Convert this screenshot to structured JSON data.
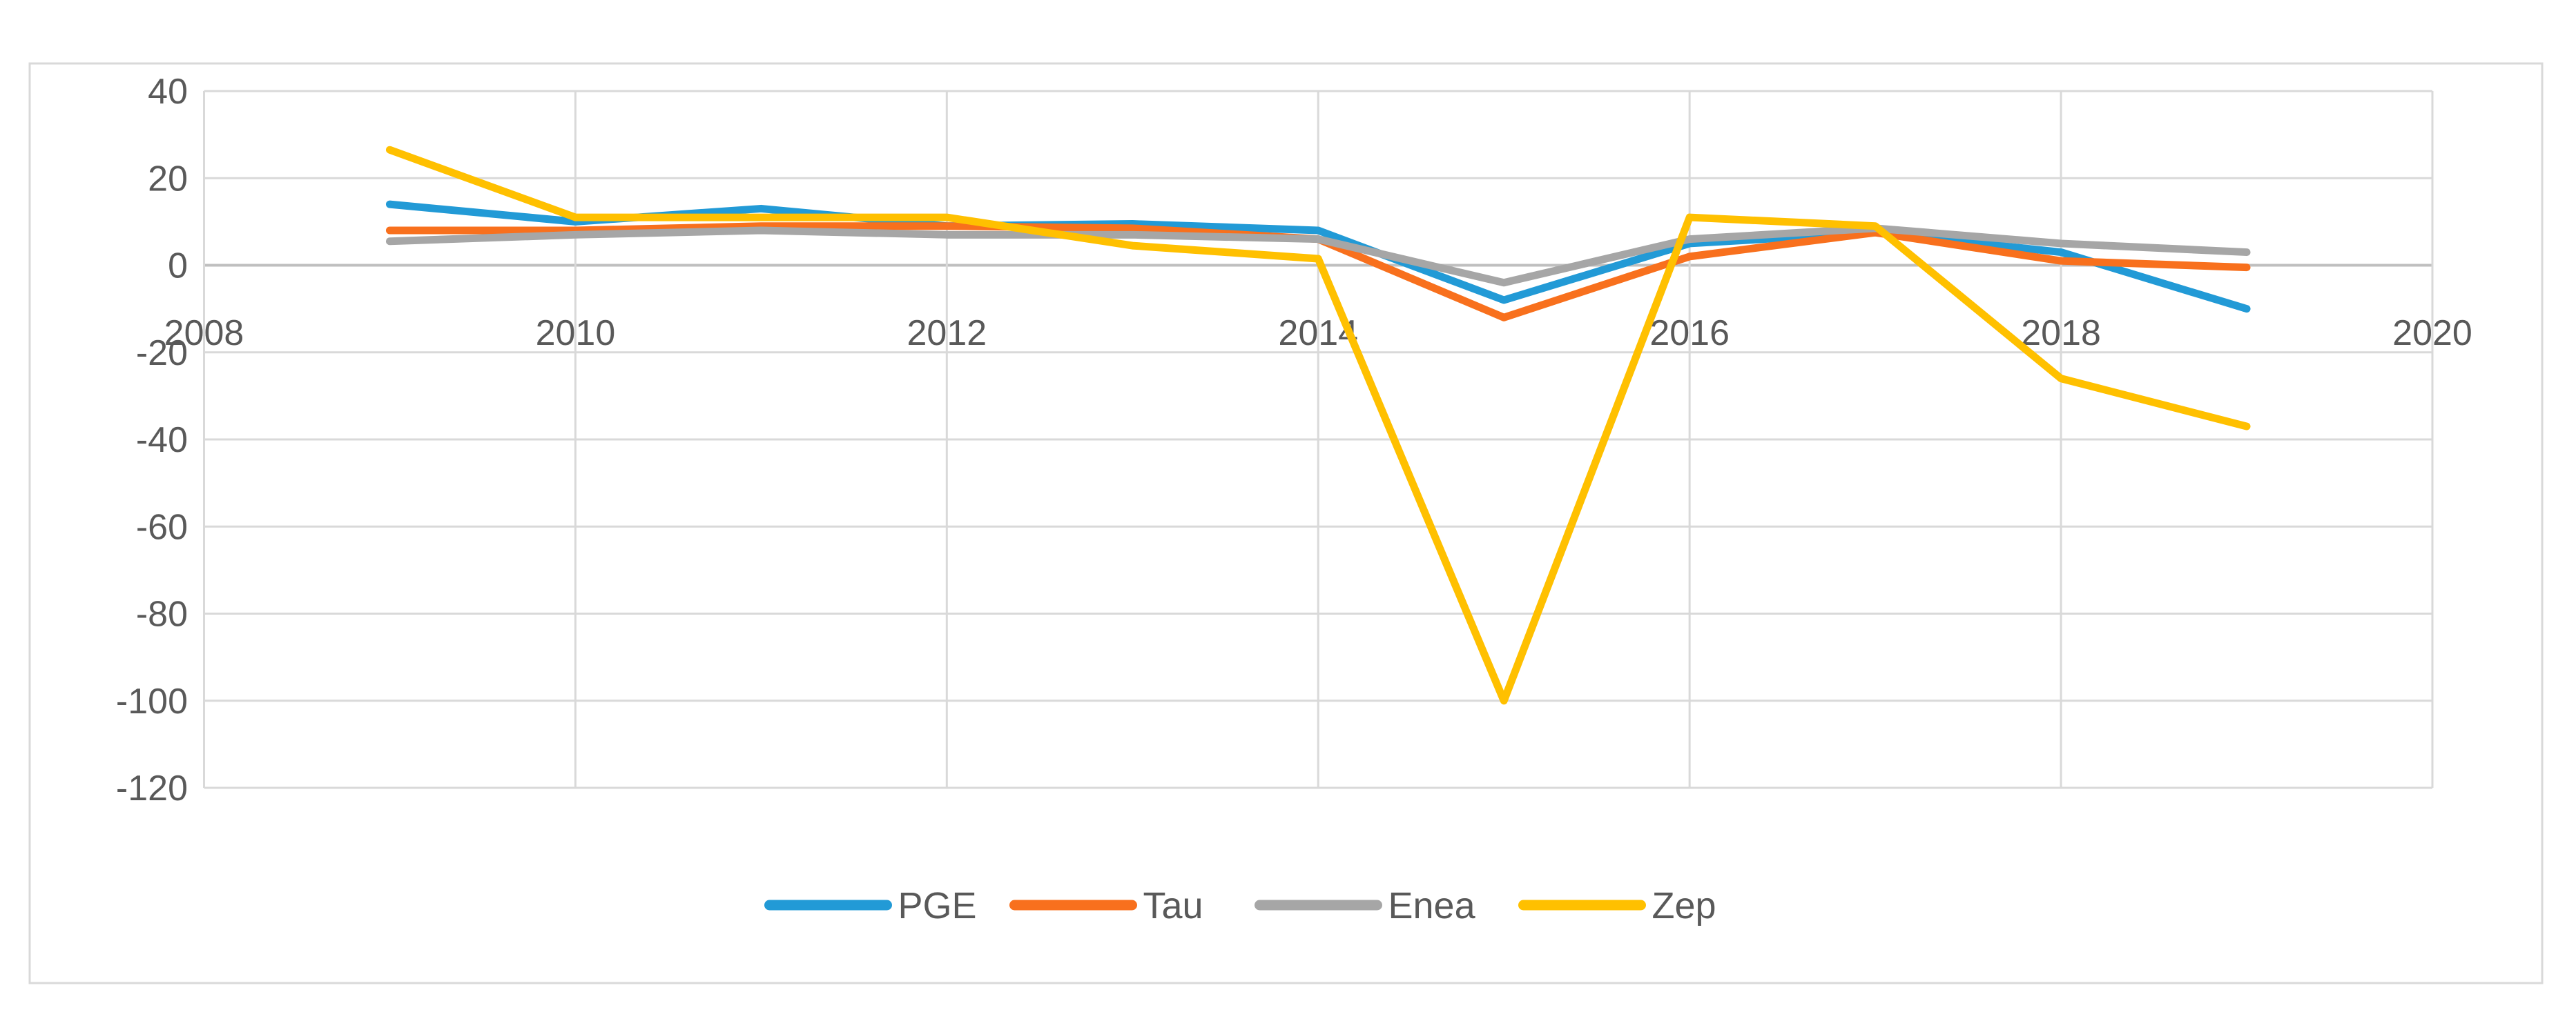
{
  "chart_data": {
    "type": "line",
    "x": [
      2009,
      2010,
      2011,
      2012,
      2013,
      2014,
      2015,
      2016,
      2017,
      2018,
      2019
    ],
    "series": [
      {
        "name": "PGE",
        "color": "#229AD6",
        "values": [
          14,
          10,
          13,
          9,
          9.5,
          8,
          -8,
          5,
          7.5,
          3,
          -10
        ]
      },
      {
        "name": "Tau",
        "color": "#F8701D",
        "values": [
          8,
          8,
          9,
          9,
          8.5,
          6,
          -12,
          2,
          7.5,
          1,
          -0.5
        ]
      },
      {
        "name": "Enea",
        "color": "#A6A6A6",
        "values": [
          5.5,
          7,
          8,
          7,
          7,
          6,
          -4,
          6,
          8.5,
          5,
          3
        ]
      },
      {
        "name": "Zep",
        "color": "#FFC000",
        "values": [
          26.5,
          11,
          11,
          11,
          4.5,
          1.5,
          -100,
          11,
          9,
          -26,
          -37
        ]
      }
    ],
    "title": "",
    "xlabel": "",
    "ylabel": "",
    "x_axis": {
      "min": 2008,
      "max": 2020,
      "tick_step": 2,
      "tick_labels": [
        "2008",
        "2010",
        "2012",
        "2014",
        "2016",
        "2018",
        "2020"
      ]
    },
    "y_axis": {
      "min": -120,
      "max": 40,
      "tick_step": 20,
      "tick_labels": [
        "40",
        "20",
        "0",
        "-20",
        "-40",
        "-60",
        "-80",
        "-100",
        "-120"
      ]
    },
    "grid": true,
    "legend_position": "bottom",
    "legend": [
      "PGE",
      "Tau",
      "Enea",
      "Zep"
    ]
  },
  "colors": {
    "background": "#FFFFFF",
    "figure_border": "#D9D9D9",
    "gridline": "#D9D9D9",
    "axis_zero_line": "#BFBFBF",
    "tick_label": "#595959",
    "legend_label": "#595959"
  }
}
